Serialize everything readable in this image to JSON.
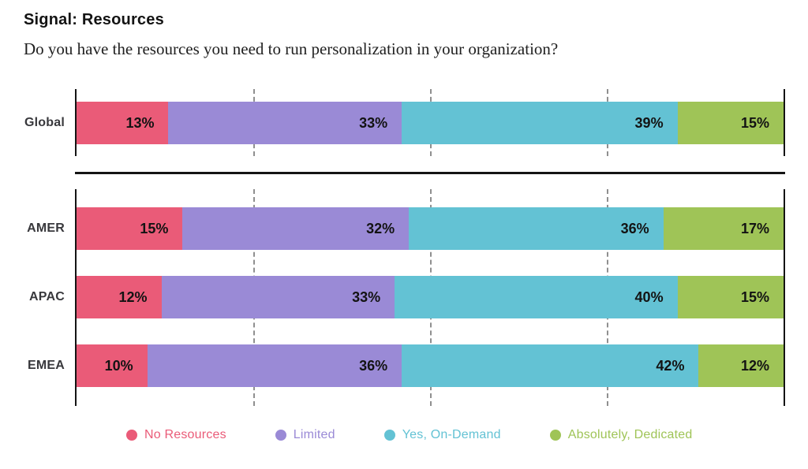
{
  "chart_data": {
    "type": "bar",
    "orientation": "horizontal",
    "stacked": true,
    "title": "Signal: Resources",
    "subtitle": "Do you have the resources you need to run personalization in your organization?",
    "unit": "%",
    "xlim": [
      0,
      100
    ],
    "gridlines_pct": [
      25,
      50,
      75
    ],
    "grid": "dashed-vertical",
    "legend_position": "bottom",
    "categories": [
      "Global",
      "AMER",
      "APAC",
      "EMEA"
    ],
    "panels": [
      {
        "categories": [
          "Global"
        ]
      },
      {
        "categories": [
          "AMER",
          "APAC",
          "EMEA"
        ]
      }
    ],
    "series": [
      {
        "name": "No Resources",
        "color": "#EA5B78",
        "values": [
          13,
          15,
          12,
          10
        ]
      },
      {
        "name": "Limited",
        "color": "#9A8AD6",
        "values": [
          33,
          32,
          33,
          36
        ]
      },
      {
        "name": "Yes, On-Demand",
        "color": "#63C2D4",
        "values": [
          39,
          36,
          40,
          42
        ]
      },
      {
        "name": "Absolutely, Dedicated",
        "color": "#9FC457",
        "values": [
          15,
          17,
          15,
          12
        ]
      }
    ],
    "colors": {
      "axis": "#141414",
      "gridline": "#8F8F8F",
      "value_label": "#131313",
      "category_label": "#38383C",
      "separator": "#141414"
    }
  }
}
